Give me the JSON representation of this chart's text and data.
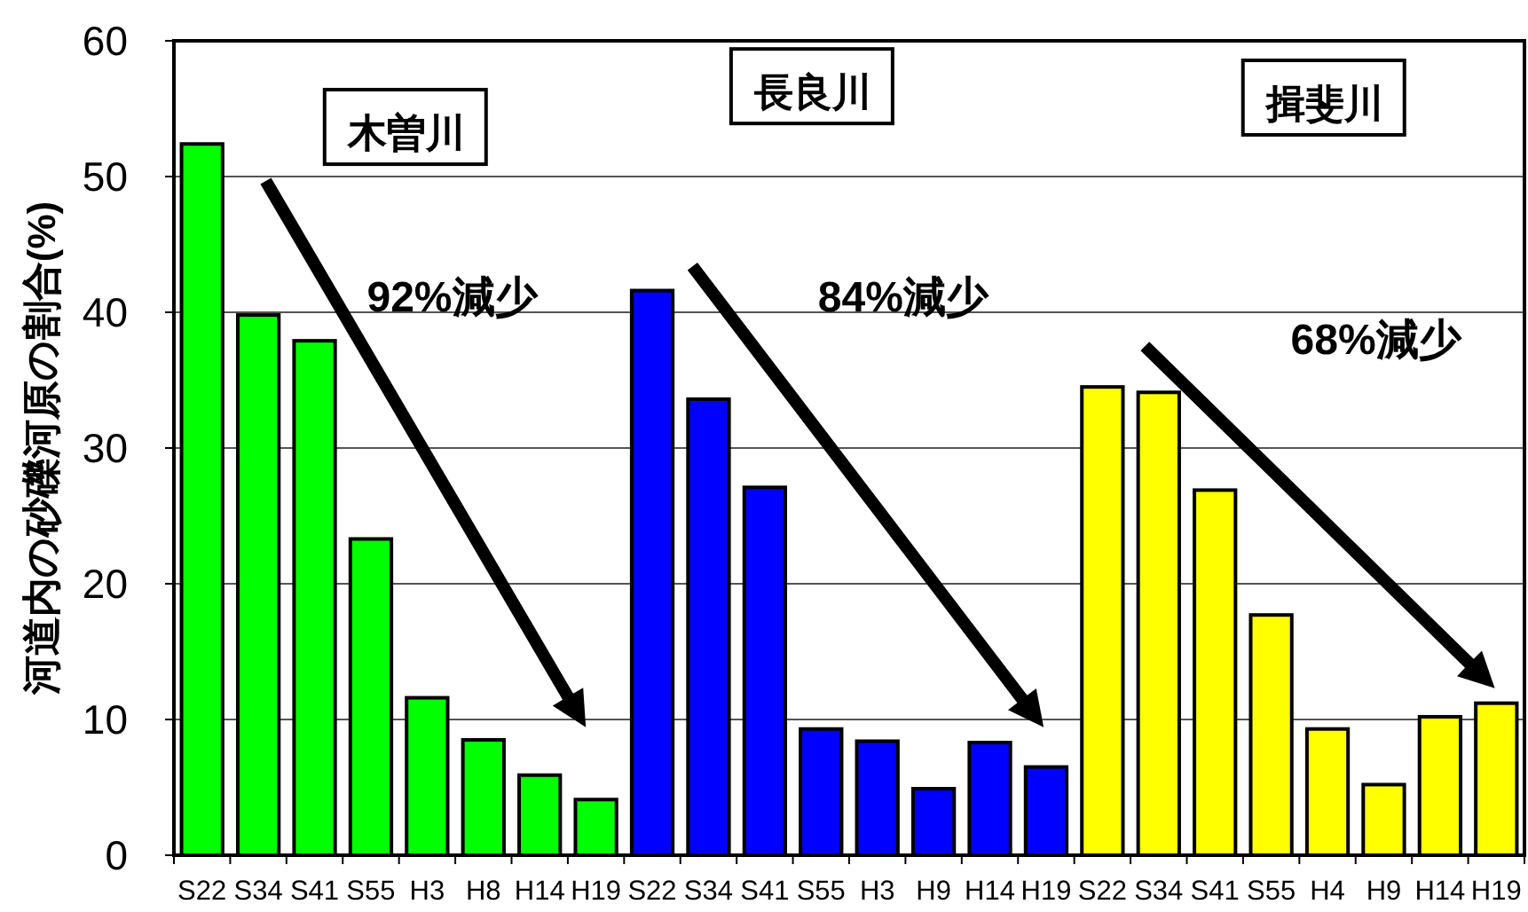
{
  "chart_data": {
    "type": "bar",
    "categories": [
      "S22",
      "S34",
      "S41",
      "S55",
      "H3",
      "H8",
      "H14",
      "H19",
      "S22",
      "S34",
      "S41",
      "S55",
      "H3",
      "H9",
      "H14",
      "H19",
      "S22",
      "S34",
      "S41",
      "S55",
      "H4",
      "H9",
      "H14",
      "H19"
    ],
    "values": [
      52.4,
      39.8,
      37.9,
      23.3,
      11.6,
      8.5,
      5.9,
      4.1,
      41.6,
      33.6,
      27.1,
      9.3,
      8.4,
      4.9,
      8.3,
      6.5,
      34.5,
      34.1,
      26.9,
      17.7,
      9.3,
      5.2,
      10.2,
      11.2
    ],
    "colors": [
      "#00ff00",
      "#00ff00",
      "#00ff00",
      "#00ff00",
      "#00ff00",
      "#00ff00",
      "#00ff00",
      "#00ff00",
      "#0000ff",
      "#0000ff",
      "#0000ff",
      "#0000ff",
      "#0000ff",
      "#0000ff",
      "#0000ff",
      "#0000ff",
      "#ffff00",
      "#ffff00",
      "#ffff00",
      "#ffff00",
      "#ffff00",
      "#ffff00",
      "#ffff00",
      "#ffff00"
    ],
    "ylim": [
      0,
      60
    ],
    "yticks": [
      0,
      10,
      20,
      30,
      40,
      50,
      60
    ],
    "grid": "y",
    "ylabel": "河道内の砂礫河原の割合(%)",
    "annotations": [
      "木曽川",
      "長良川",
      "揖斐川",
      "92%減少",
      "84%減少",
      "68%減少"
    ]
  }
}
